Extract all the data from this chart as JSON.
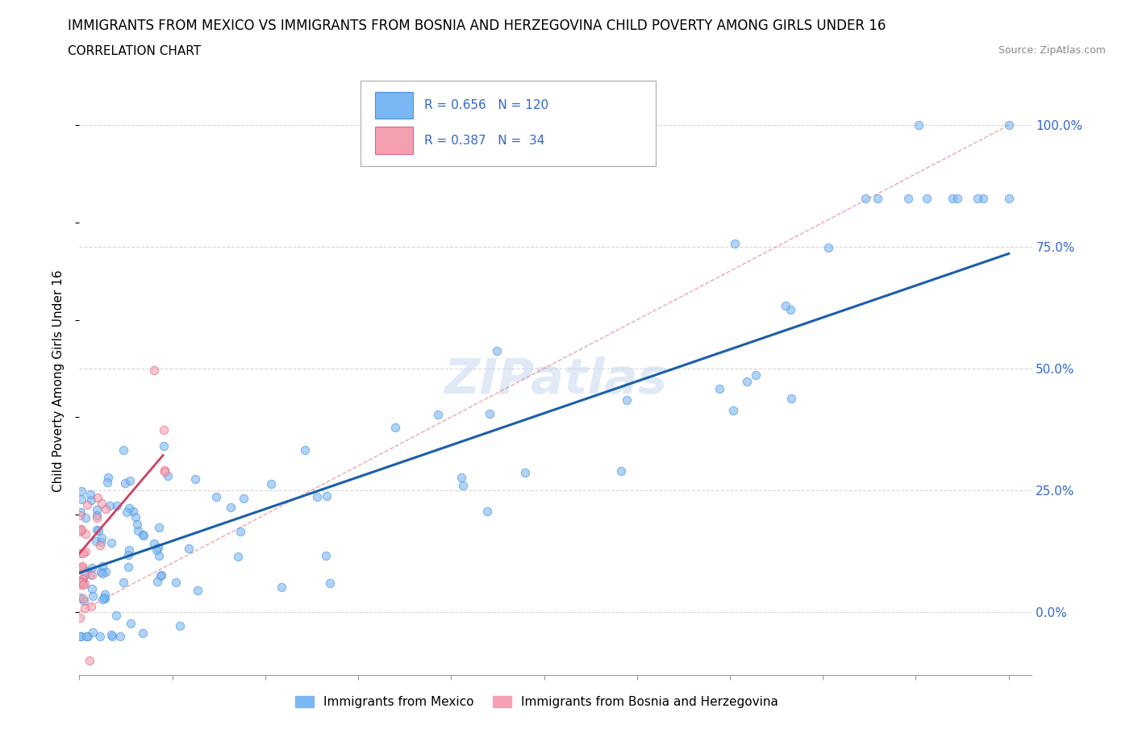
{
  "title": "IMMIGRANTS FROM MEXICO VS IMMIGRANTS FROM BOSNIA AND HERZEGOVINA CHILD POVERTY AMONG GIRLS UNDER 16",
  "subtitle": "CORRELATION CHART",
  "source": "Source: ZipAtlas.com",
  "ylabel": "Child Poverty Among Girls Under 16",
  "ytick_labels": [
    "0.0%",
    "25.0%",
    "50.0%",
    "75.0%",
    "100.0%"
  ],
  "ytick_values": [
    0.0,
    0.25,
    0.5,
    0.75,
    1.0
  ],
  "xlim": [
    0.0,
    0.82
  ],
  "ylim": [
    -0.13,
    1.08
  ],
  "legend_mexico_R": "0.656",
  "legend_mexico_N": "120",
  "legend_bosnia_R": "0.387",
  "legend_bosnia_N": "34",
  "mexico_color": "#7ab8f5",
  "mexico_edge_color": "#4a90d9",
  "bosnia_color": "#f5a0b0",
  "bosnia_edge_color": "#e06080",
  "mexico_line_color": "#1a5faa",
  "bosnia_line_color": "#d04060",
  "dash_line_color": "#e08090",
  "watermark_color": "#c8d8f0",
  "title_fontsize": 12,
  "subtitle_fontsize": 11,
  "axis_label_color": "#3366cc",
  "scatter_alpha": 0.6,
  "scatter_size": 55,
  "scatter_lw": 0.8,
  "mexico_slope": 0.82,
  "mexico_intercept": 0.08,
  "bosnia_slope": 2.8,
  "bosnia_intercept": 0.12
}
